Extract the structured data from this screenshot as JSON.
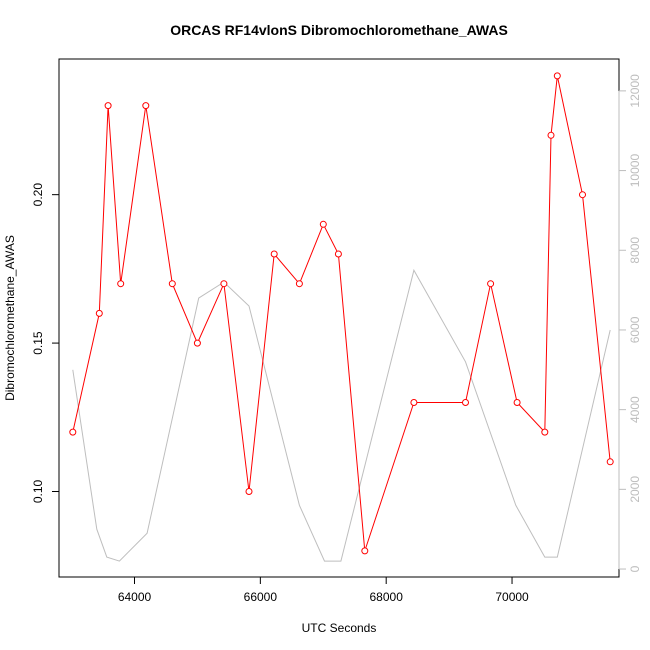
{
  "chart_data": {
    "type": "line",
    "title": "ORCAS RF14vlonS Dibromochloromethane_AWAS",
    "xlabel": "UTC Seconds",
    "ylabel": "Dibromochloromethane_AWAS",
    "xlim": [
      62800,
      71700
    ],
    "ylim": [
      0.0712,
      0.2457
    ],
    "y2lim": [
      -200,
      12800
    ],
    "x_ticks": [
      64000,
      66000,
      68000,
      70000
    ],
    "y_ticks": [
      0.1,
      0.15,
      0.2
    ],
    "y2_ticks": [
      0,
      2000,
      4000,
      6000,
      8000,
      10000,
      12000
    ],
    "colors": {
      "primary": "#ff0000",
      "secondary": "#bebebe"
    },
    "series": [
      {
        "axis": "left",
        "style": "line+points",
        "x": [
          63020,
          63440,
          63580,
          63780,
          64180,
          64600,
          65000,
          65420,
          65820,
          66220,
          66620,
          67000,
          67240,
          67660,
          68440,
          69260,
          69660,
          70080,
          70520,
          70620,
          70720,
          71120,
          71560
        ],
        "y": [
          0.12,
          0.16,
          0.23,
          0.17,
          0.23,
          0.17,
          0.15,
          0.17,
          0.1,
          0.18,
          0.17,
          0.19,
          0.18,
          0.08,
          0.13,
          0.13,
          0.17,
          0.13,
          0.12,
          0.22,
          0.24,
          0.2,
          0.11
        ]
      },
      {
        "axis": "right",
        "style": "line",
        "x": [
          63020,
          63400,
          63560,
          63760,
          64200,
          65020,
          65420,
          65820,
          66620,
          67020,
          67280,
          68440,
          69260,
          70060,
          70520,
          70720,
          71560
        ],
        "y": [
          5000,
          1000,
          300,
          200,
          900,
          6800,
          7200,
          6600,
          1600,
          200,
          200,
          7500,
          5200,
          1600,
          300,
          300,
          6000
        ]
      }
    ]
  }
}
